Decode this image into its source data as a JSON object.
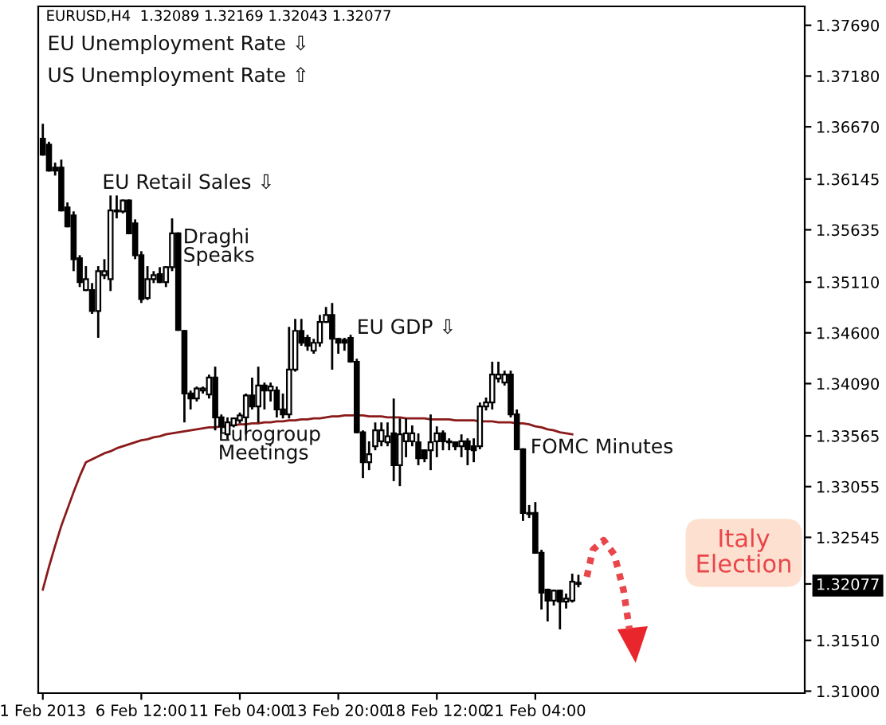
{
  "chart_data": {
    "type": "candlestick",
    "title": "EURUSD,H4  1.32089 1.32169 1.32043 1.32077",
    "categories": [
      "1 Feb 2013",
      null,
      null,
      null,
      null,
      null,
      null,
      null,
      null,
      null,
      null,
      null,
      null,
      null,
      null,
      null,
      "6 Feb 12:00",
      null,
      null,
      null,
      null,
      null,
      null,
      null,
      null,
      null,
      null,
      null,
      null,
      null,
      null,
      null,
      "11 Feb 04:00",
      null,
      null,
      null,
      null,
      null,
      null,
      null,
      null,
      null,
      null,
      null,
      null,
      null,
      null,
      null,
      "13 Feb 20:00",
      null,
      null,
      null,
      null,
      null,
      null,
      null,
      null,
      null,
      null,
      null,
      null,
      null,
      null,
      null,
      "18 Feb 12:00",
      null,
      null,
      null,
      null,
      null,
      null,
      null,
      null,
      null,
      null,
      null,
      null,
      null,
      null,
      null,
      "21 Feb 04:00",
      null,
      null,
      null,
      null,
      null,
      null,
      null
    ],
    "ohlc": [
      [
        1.3655,
        1.367,
        1.3638,
        1.3639
      ],
      [
        1.3649,
        1.3652,
        1.3622,
        1.3623
      ],
      [
        1.3626,
        1.3631,
        1.3618,
        1.3623
      ],
      [
        1.3626,
        1.3634,
        1.3582,
        1.3583
      ],
      [
        1.3586,
        1.3591,
        1.3566,
        1.3567
      ],
      [
        1.3578,
        1.3582,
        1.3522,
        1.3534
      ],
      [
        1.3535,
        1.3538,
        1.3506,
        1.3511
      ],
      [
        1.3503,
        1.3527,
        1.3502,
        1.3514
      ],
      [
        1.3503,
        1.351,
        1.3479,
        1.3482
      ],
      [
        1.3482,
        1.3527,
        1.3455,
        1.3522
      ],
      [
        1.3518,
        1.3534,
        1.3514,
        1.3522
      ],
      [
        1.3514,
        1.3598,
        1.3502,
        1.3583
      ],
      [
        1.3583,
        1.3598,
        1.3575,
        1.3582
      ],
      [
        1.3582,
        1.3594,
        1.358,
        1.3593
      ],
      [
        1.3593,
        1.3594,
        1.3559,
        1.356
      ],
      [
        1.357,
        1.3574,
        1.3534,
        1.3538
      ],
      [
        1.3538,
        1.3542,
        1.349,
        1.3494
      ],
      [
        1.3495,
        1.3527,
        1.3493,
        1.3514
      ],
      [
        1.3514,
        1.3522,
        1.351,
        1.3518
      ],
      [
        1.3519,
        1.3526,
        1.351,
        1.3511
      ],
      [
        1.3511,
        1.3527,
        1.3506,
        1.3526
      ],
      [
        1.3526,
        1.3575,
        1.3522,
        1.356
      ],
      [
        1.356,
        1.3561,
        1.3462,
        1.3463
      ],
      [
        1.3462,
        1.3463,
        1.337,
        1.3399
      ],
      [
        1.3399,
        1.3402,
        1.3383,
        1.3394
      ],
      [
        1.3394,
        1.3406,
        1.3391,
        1.3404
      ],
      [
        1.3402,
        1.3406,
        1.3399,
        1.3404
      ],
      [
        1.3398,
        1.3418,
        1.3394,
        1.3415
      ],
      [
        1.3415,
        1.3426,
        1.3362,
        1.3375
      ],
      [
        1.3375,
        1.3378,
        1.3359,
        1.3366
      ],
      [
        1.3358,
        1.3375,
        1.3353,
        1.337
      ],
      [
        1.3367,
        1.3375,
        1.3365,
        1.3374
      ],
      [
        1.3372,
        1.338,
        1.3369,
        1.3377
      ],
      [
        1.3375,
        1.3399,
        1.3358,
        1.3397
      ],
      [
        1.3397,
        1.3415,
        1.3383,
        1.3386
      ],
      [
        1.3386,
        1.3426,
        1.337,
        1.3407
      ],
      [
        1.3407,
        1.341,
        1.3383,
        1.3402
      ],
      [
        1.3402,
        1.341,
        1.3391,
        1.3406
      ],
      [
        1.3402,
        1.3406,
        1.3375,
        1.3383
      ],
      [
        1.3383,
        1.3399,
        1.3374,
        1.3378
      ],
      [
        1.3378,
        1.3466,
        1.3374,
        1.3423
      ],
      [
        1.3423,
        1.3474,
        1.3421,
        1.3462
      ],
      [
        1.3462,
        1.3474,
        1.3447,
        1.345
      ],
      [
        1.3455,
        1.3458,
        1.3442,
        1.3447
      ],
      [
        1.3442,
        1.3454,
        1.3439,
        1.345
      ],
      [
        1.345,
        1.3478,
        1.3446,
        1.3471
      ],
      [
        1.3471,
        1.3486,
        1.347,
        1.3478
      ],
      [
        1.3478,
        1.349,
        1.3423,
        1.3454
      ],
      [
        1.3454,
        1.3455,
        1.3439,
        1.345
      ],
      [
        1.3453,
        1.3455,
        1.3442,
        1.345
      ],
      [
        1.3455,
        1.3458,
        1.343,
        1.3431
      ],
      [
        1.3431,
        1.3434,
        1.3359,
        1.336
      ],
      [
        1.336,
        1.3362,
        1.3314,
        1.333
      ],
      [
        1.333,
        1.3351,
        1.3322,
        1.3338
      ],
      [
        1.3346,
        1.337,
        1.3342,
        1.3362
      ],
      [
        1.3351,
        1.337,
        1.3346,
        1.3362
      ],
      [
        1.335,
        1.337,
        1.3346,
        1.3356
      ],
      [
        1.3359,
        1.3394,
        1.3311,
        1.3327
      ],
      [
        1.3327,
        1.3374,
        1.3306,
        1.3358
      ],
      [
        1.3351,
        1.3374,
        1.3335,
        1.3359
      ],
      [
        1.3351,
        1.3367,
        1.3346,
        1.3359
      ],
      [
        1.335,
        1.3359,
        1.3327,
        1.3334
      ],
      [
        1.3342,
        1.3343,
        1.333,
        1.3334
      ],
      [
        1.3342,
        1.3378,
        1.3322,
        1.335
      ],
      [
        1.3351,
        1.3366,
        1.3335,
        1.3359
      ],
      [
        1.3359,
        1.3362,
        1.3342,
        1.3351
      ],
      [
        1.3351,
        1.3354,
        1.3342,
        1.335
      ],
      [
        1.335,
        1.3351,
        1.3342,
        1.3346
      ],
      [
        1.3346,
        1.3358,
        1.3335,
        1.3351
      ],
      [
        1.3351,
        1.3354,
        1.3327,
        1.3343
      ],
      [
        1.3346,
        1.3354,
        1.333,
        1.3342
      ],
      [
        1.3346,
        1.339,
        1.3343,
        1.3386
      ],
      [
        1.3386,
        1.3395,
        1.3382,
        1.339
      ],
      [
        1.339,
        1.3431,
        1.3383,
        1.3418
      ],
      [
        1.3414,
        1.3431,
        1.341,
        1.3418
      ],
      [
        1.341,
        1.3422,
        1.3407,
        1.3418
      ],
      [
        1.3418,
        1.3422,
        1.3375,
        1.3378
      ],
      [
        1.3378,
        1.3383,
        1.3342,
        1.3343
      ],
      [
        1.3343,
        1.3344,
        1.3271,
        1.3279
      ],
      [
        1.3279,
        1.3287,
        1.3274,
        1.3278
      ],
      [
        1.3279,
        1.329,
        1.3238,
        1.3239
      ],
      [
        1.3239,
        1.3242,
        1.3182,
        1.3199
      ],
      [
        1.3202,
        1.3203,
        1.317,
        1.3191
      ],
      [
        1.3191,
        1.3202,
        1.3186,
        1.3201
      ],
      [
        1.3201,
        1.3202,
        1.3162,
        1.319
      ],
      [
        1.319,
        1.3198,
        1.3183,
        1.3193
      ],
      [
        1.3191,
        1.3218,
        1.3189,
        1.321
      ],
      [
        1.32089,
        1.32169,
        1.32043,
        1.32077
      ]
    ],
    "series": [
      {
        "type": "line",
        "color": "#8b1a1a",
        "values": [
          1.3202,
          1.3225,
          1.3246,
          1.3266,
          1.3283,
          1.33,
          1.3316,
          1.333,
          1.3333,
          1.3336,
          1.3339,
          1.3341,
          1.3344,
          1.3346,
          1.3348,
          1.335,
          1.3352,
          1.3353,
          1.3355,
          1.3356,
          1.3358,
          1.3359,
          1.336,
          1.3361,
          1.3362,
          1.3363,
          1.3364,
          1.3365,
          1.3365,
          1.3366,
          1.3367,
          1.3367,
          1.3368,
          1.3368,
          1.3369,
          1.3369,
          1.337,
          1.337,
          1.3371,
          1.3371,
          1.3372,
          1.3372,
          1.3373,
          1.3373,
          1.3374,
          1.3374,
          1.3375,
          1.3376,
          1.3376,
          1.3377,
          1.3377,
          1.3377,
          1.3377,
          1.3376,
          1.3376,
          1.3376,
          1.3375,
          1.3375,
          1.3375,
          1.3374,
          1.3374,
          1.3374,
          1.3374,
          1.3373,
          1.3373,
          1.3373,
          1.3373,
          1.3372,
          1.3372,
          1.3372,
          1.3372,
          1.3371,
          1.3371,
          1.3371,
          1.337,
          1.337,
          1.337,
          1.3369,
          1.3369,
          1.3368,
          1.3366,
          1.3365,
          1.3363,
          1.3362,
          1.336,
          1.3359,
          1.3358,
          null
        ]
      }
    ],
    "ylim": [
      1.3098,
      1.3788
    ],
    "yticks": [
      {
        "value": 1.3769,
        "label": "1.37690"
      },
      {
        "value": 1.3718,
        "label": "1.37180"
      },
      {
        "value": 1.3667,
        "label": "1.36670"
      },
      1.36145,
      1.35635,
      {
        "value": 1.3511,
        "label": "1.35110"
      },
      {
        "value": 1.346,
        "label": "1.34600"
      },
      {
        "value": 1.3409,
        "label": "1.34090"
      },
      1.33565,
      1.33055,
      1.32545,
      {
        "value": 1.32077,
        "label": "1.32077"
      },
      {
        "value": 1.3151,
        "label": "1.31510"
      },
      {
        "value": 1.31,
        "label": "1.31000"
      }
    ],
    "annotations": [
      "EU Unemployment Rate ⇩",
      "US Unemployment Rate ⇧",
      "EU Retail Sales ⇩",
      "Draghi\nSpeaks",
      "EU GDP ⇩",
      "Eurogroup\nMeetings",
      "FOMC Minutes",
      "Italy\nElection"
    ]
  }
}
